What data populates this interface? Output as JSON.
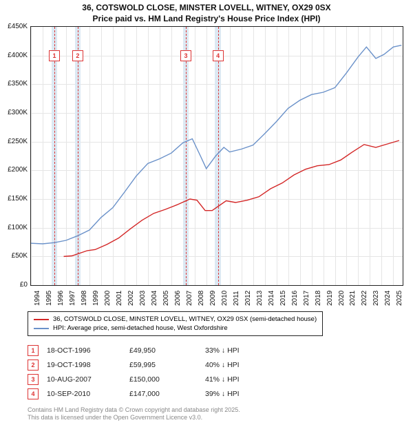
{
  "title1": "36, COTSWOLD CLOSE, MINSTER LOVELL, WITNEY, OX29 0SX",
  "title2": "Price paid vs. HM Land Registry's House Price Index (HPI)",
  "chart": {
    "type": "line",
    "xlim": [
      1994,
      2025.8
    ],
    "ylim": [
      0,
      450000
    ],
    "ytick_step": 50000,
    "yticks": [
      "£0",
      "£50K",
      "£100K",
      "£150K",
      "£200K",
      "£250K",
      "£300K",
      "£350K",
      "£400K",
      "£450K"
    ],
    "xticks": [
      1994,
      1995,
      1996,
      1997,
      1998,
      1999,
      2000,
      2001,
      2002,
      2003,
      2004,
      2005,
      2006,
      2007,
      2008,
      2009,
      2010,
      2011,
      2012,
      2013,
      2014,
      2015,
      2016,
      2017,
      2018,
      2019,
      2020,
      2021,
      2022,
      2023,
      2024,
      2025
    ],
    "line_width": 1.4,
    "grid_color": "#e5e5e5",
    "band_color": "#dce9f3",
    "marker_dash_color": "#d33",
    "bands": [
      {
        "from": 1995.75,
        "to": 1996.25
      },
      {
        "from": 1997.75,
        "to": 1998.25
      },
      {
        "from": 2007.0,
        "to": 2007.5
      },
      {
        "from": 2009.75,
        "to": 2010.25
      }
    ],
    "markers": [
      {
        "n": "1",
        "x": 1996.0,
        "label_y": 400000
      },
      {
        "n": "2",
        "x": 1998.0,
        "label_y": 400000
      },
      {
        "n": "3",
        "x": 2007.25,
        "label_y": 400000
      },
      {
        "n": "4",
        "x": 2010.0,
        "label_y": 400000
      }
    ],
    "colors": {
      "paid": "#d32626",
      "hpi": "#6a91c9",
      "border": "#222"
    },
    "series": {
      "paid": [
        [
          1996.8,
          49950
        ],
        [
          1997.5,
          51000
        ],
        [
          1998.8,
          59995
        ],
        [
          1999.5,
          62000
        ],
        [
          2000.5,
          71000
        ],
        [
          2001.5,
          82000
        ],
        [
          2002.5,
          98000
        ],
        [
          2003.5,
          113000
        ],
        [
          2004.5,
          125000
        ],
        [
          2005.5,
          132000
        ],
        [
          2006.5,
          140000
        ],
        [
          2007.6,
          150000
        ],
        [
          2008.2,
          148000
        ],
        [
          2008.9,
          130000
        ],
        [
          2009.5,
          130000
        ],
        [
          2010.7,
          147000
        ],
        [
          2011.5,
          144000
        ],
        [
          2012.5,
          148000
        ],
        [
          2013.5,
          154000
        ],
        [
          2014.5,
          168000
        ],
        [
          2015.5,
          178000
        ],
        [
          2016.5,
          192000
        ],
        [
          2017.5,
          202000
        ],
        [
          2018.5,
          208000
        ],
        [
          2019.5,
          210000
        ],
        [
          2020.5,
          218000
        ],
        [
          2021.5,
          232000
        ],
        [
          2022.5,
          245000
        ],
        [
          2023.5,
          240000
        ],
        [
          2024.5,
          246000
        ],
        [
          2025.5,
          252000
        ]
      ],
      "hpi": [
        [
          1994.0,
          73000
        ],
        [
          1995.0,
          72000
        ],
        [
          1996.0,
          74000
        ],
        [
          1997.0,
          78000
        ],
        [
          1998.0,
          86000
        ],
        [
          1999.0,
          96000
        ],
        [
          2000.0,
          118000
        ],
        [
          2001.0,
          135000
        ],
        [
          2002.0,
          162000
        ],
        [
          2003.0,
          190000
        ],
        [
          2004.0,
          212000
        ],
        [
          2005.0,
          220000
        ],
        [
          2006.0,
          230000
        ],
        [
          2007.0,
          248000
        ],
        [
          2007.8,
          255000
        ],
        [
          2008.5,
          225000
        ],
        [
          2009.0,
          203000
        ],
        [
          2009.8,
          225000
        ],
        [
          2010.5,
          240000
        ],
        [
          2011.0,
          232000
        ],
        [
          2012.0,
          237000
        ],
        [
          2013.0,
          244000
        ],
        [
          2014.0,
          264000
        ],
        [
          2015.0,
          285000
        ],
        [
          2016.0,
          308000
        ],
        [
          2017.0,
          322000
        ],
        [
          2018.0,
          332000
        ],
        [
          2019.0,
          336000
        ],
        [
          2020.0,
          344000
        ],
        [
          2021.0,
          370000
        ],
        [
          2022.0,
          398000
        ],
        [
          2022.7,
          415000
        ],
        [
          2023.5,
          395000
        ],
        [
          2024.2,
          402000
        ],
        [
          2025.0,
          415000
        ],
        [
          2025.7,
          418000
        ]
      ]
    }
  },
  "legend": {
    "items": [
      {
        "color": "#d32626",
        "label": "36, COTSWOLD CLOSE, MINSTER LOVELL, WITNEY, OX29 0SX (semi-detached house)"
      },
      {
        "color": "#6a91c9",
        "label": "HPI: Average price, semi-detached house, West Oxfordshire"
      }
    ]
  },
  "sales": [
    {
      "n": "1",
      "date": "18-OCT-1996",
      "price": "£49,950",
      "delta": "33% ↓ HPI"
    },
    {
      "n": "2",
      "date": "19-OCT-1998",
      "price": "£59,995",
      "delta": "40% ↓ HPI"
    },
    {
      "n": "3",
      "date": "10-AUG-2007",
      "price": "£150,000",
      "delta": "41% ↓ HPI"
    },
    {
      "n": "4",
      "date": "10-SEP-2010",
      "price": "£147,000",
      "delta": "39% ↓ HPI"
    }
  ],
  "footer": {
    "l1": "Contains HM Land Registry data © Crown copyright and database right 2025.",
    "l2": "This data is licensed under the Open Government Licence v3.0."
  }
}
